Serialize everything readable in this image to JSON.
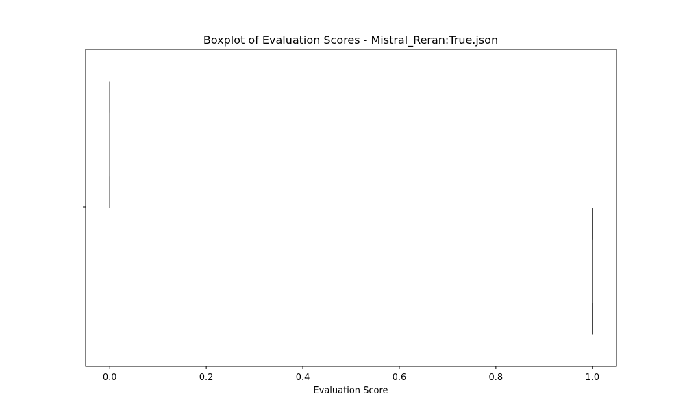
{
  "chart_data": {
    "type": "boxplot",
    "title": "Boxplot of Evaluation Scores - Mistral_Reran:True.json",
    "xlabel": "Evaluation Score",
    "ylabel": "",
    "xlim": [
      -0.05,
      1.05
    ],
    "x_ticks": [
      0.0,
      0.2,
      0.4,
      0.6,
      0.8,
      1.0
    ],
    "x_tick_labels": [
      "0.0",
      "0.2",
      "0.4",
      "0.6",
      "0.8",
      "1.0"
    ],
    "grid": false,
    "groups": [
      {
        "value": 0.0,
        "band": "upper"
      },
      {
        "value": 1.0,
        "band": "lower"
      }
    ],
    "colors": {
      "box_line": "#3f3f3f",
      "frame": "#000000"
    }
  }
}
